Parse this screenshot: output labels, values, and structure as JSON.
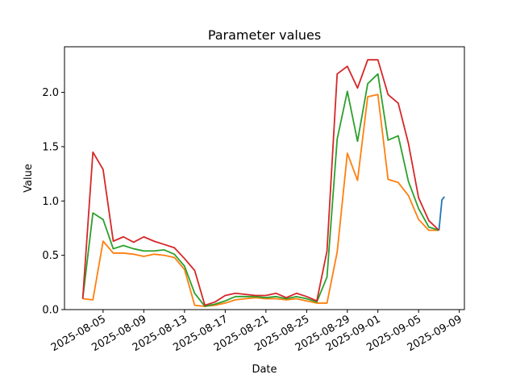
{
  "chart_data": {
    "type": "line",
    "title": "Parameter values",
    "xlabel": "Date",
    "ylabel": "Value",
    "x": [
      "2025-08-03",
      "2025-08-04",
      "2025-08-05",
      "2025-08-06",
      "2025-08-07",
      "2025-08-08",
      "2025-08-09",
      "2025-08-10",
      "2025-08-11",
      "2025-08-12",
      "2025-08-13",
      "2025-08-14",
      "2025-08-15",
      "2025-08-16",
      "2025-08-17",
      "2025-08-18",
      "2025-08-19",
      "2025-08-20",
      "2025-08-21",
      "2025-08-22",
      "2025-08-23",
      "2025-08-24",
      "2025-08-25",
      "2025-08-26",
      "2025-08-27",
      "2025-08-28",
      "2025-08-29",
      "2025-08-30",
      "2025-08-31",
      "2025-09-01",
      "2025-09-02",
      "2025-09-03",
      "2025-09-04",
      "2025-09-05",
      "2025-09-06",
      "2025-09-07"
    ],
    "series": [
      {
        "color": "#1f77b4",
        "x": [
          "2025-09-07T00:00Z",
          "2025-09-07T07:00Z",
          "2025-09-07T13:00Z"
        ],
        "values": [
          0.73,
          1.01,
          1.04
        ]
      },
      {
        "color": "#ff7f0e",
        "values": [
          0.1,
          0.09,
          0.63,
          0.52,
          0.52,
          0.51,
          0.49,
          0.51,
          0.5,
          0.48,
          0.37,
          0.04,
          0.03,
          0.04,
          0.06,
          0.09,
          0.1,
          0.11,
          0.1,
          0.1,
          0.09,
          0.1,
          0.08,
          0.06,
          0.06,
          0.53,
          1.44,
          1.19,
          1.96,
          1.98,
          1.2,
          1.17,
          1.05,
          0.83,
          0.73,
          0.73
        ]
      },
      {
        "color": "#2ca02c",
        "values": [
          0.1,
          0.89,
          0.83,
          0.56,
          0.59,
          0.56,
          0.54,
          0.54,
          0.55,
          0.51,
          0.4,
          0.15,
          0.03,
          0.05,
          0.08,
          0.12,
          0.12,
          0.12,
          0.11,
          0.12,
          0.1,
          0.12,
          0.1,
          0.07,
          0.3,
          1.57,
          2.01,
          1.55,
          2.08,
          2.17,
          1.56,
          1.6,
          1.18,
          0.93,
          0.76,
          0.73
        ]
      },
      {
        "color": "#d62728",
        "values": [
          0.1,
          1.45,
          1.29,
          0.63,
          0.67,
          0.62,
          0.67,
          0.63,
          0.6,
          0.57,
          0.47,
          0.36,
          0.04,
          0.07,
          0.13,
          0.15,
          0.14,
          0.13,
          0.13,
          0.15,
          0.11,
          0.15,
          0.12,
          0.08,
          0.54,
          2.17,
          2.24,
          2.04,
          2.3,
          2.3,
          1.98,
          1.9,
          1.53,
          1.03,
          0.82,
          0.73
        ]
      }
    ],
    "xlim": [
      "2025-08-01T05:00Z",
      "2025-09-09T12:00Z"
    ],
    "xticks": [
      "2025-08-05",
      "2025-08-09",
      "2025-08-13",
      "2025-08-17",
      "2025-08-21",
      "2025-08-25",
      "2025-08-29",
      "2025-09-01",
      "2025-09-05",
      "2025-09-09"
    ],
    "ylim": [
      0,
      2.42
    ],
    "yticks": [
      {
        "value": 0,
        "label": "0.0"
      },
      {
        "value": 0.5,
        "label": "0.5"
      },
      {
        "value": 1,
        "label": "1.0"
      },
      {
        "value": 1.5,
        "label": "1.5"
      },
      {
        "value": 2,
        "label": "2.0"
      }
    ]
  }
}
